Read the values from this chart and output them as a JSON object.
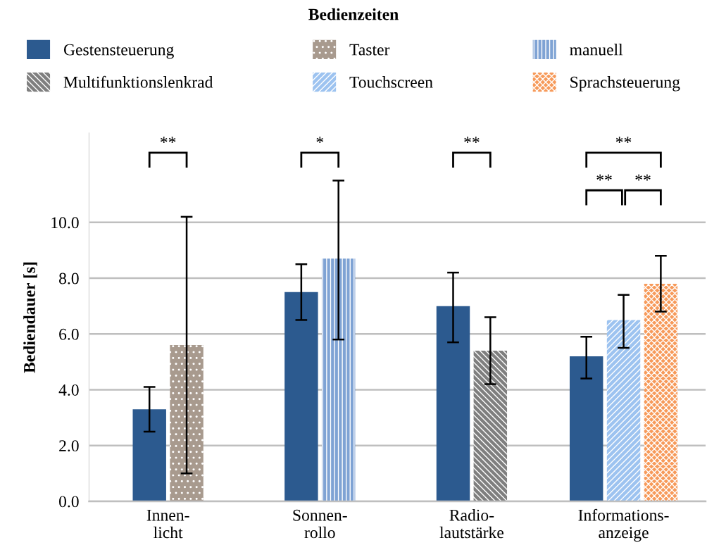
{
  "chart_data": {
    "type": "bar",
    "title": "Bedienzeiten",
    "ylabel": "Bediendauer [s]",
    "categories": [
      "Innen-\nlicht",
      "Sonnen-\nrollo",
      "Radio-\nlautstärke",
      "Informations-\nanzeige"
    ],
    "series": [
      {
        "name": "Gestensteuerung",
        "color": "#2c5a8f",
        "values": [
          3.3,
          7.5,
          7.0,
          5.2
        ],
        "errors": [
          [
            2.5,
            4.1
          ],
          [
            6.5,
            8.5
          ],
          [
            5.7,
            8.2
          ],
          [
            4.4,
            5.9
          ]
        ]
      },
      {
        "name": "Taster",
        "color": "#a89a8e",
        "values": [
          5.6,
          null,
          null,
          null
        ],
        "errors": [
          [
            1.0,
            10.2
          ],
          null,
          null,
          null
        ]
      },
      {
        "name": "manuell",
        "color": "#7fa3d4",
        "values": [
          null,
          8.7,
          null,
          null
        ],
        "errors": [
          null,
          [
            5.8,
            11.5
          ],
          null,
          null
        ]
      },
      {
        "name": "Multifunktionslenkrad",
        "color": "#7f7f7f",
        "values": [
          null,
          null,
          5.4,
          null
        ],
        "errors": [
          null,
          null,
          [
            4.2,
            6.6
          ],
          null
        ]
      },
      {
        "name": "Touchscreen",
        "color": "#9dc3f0",
        "values": [
          null,
          null,
          null,
          6.5
        ],
        "errors": [
          null,
          null,
          null,
          [
            5.5,
            7.4
          ]
        ]
      },
      {
        "name": "Sprachsteuerung",
        "color": "#f79a5a",
        "values": [
          null,
          null,
          null,
          7.8
        ],
        "errors": [
          null,
          null,
          null,
          [
            6.8,
            8.8
          ]
        ]
      }
    ],
    "ylim": [
      0,
      13.2
    ],
    "yticks": [
      {
        "value": 0,
        "label": "0.0"
      },
      {
        "value": 2,
        "label": "2.0"
      },
      {
        "value": 4,
        "label": "4.0"
      },
      {
        "value": 6,
        "label": "6.0"
      },
      {
        "value": 8,
        "label": "8.0"
      },
      {
        "value": 10,
        "label": "10.0"
      }
    ],
    "grid": "y",
    "legend": "top",
    "annotations": [
      "**",
      "*",
      "**",
      "**",
      "**",
      "**"
    ]
  }
}
